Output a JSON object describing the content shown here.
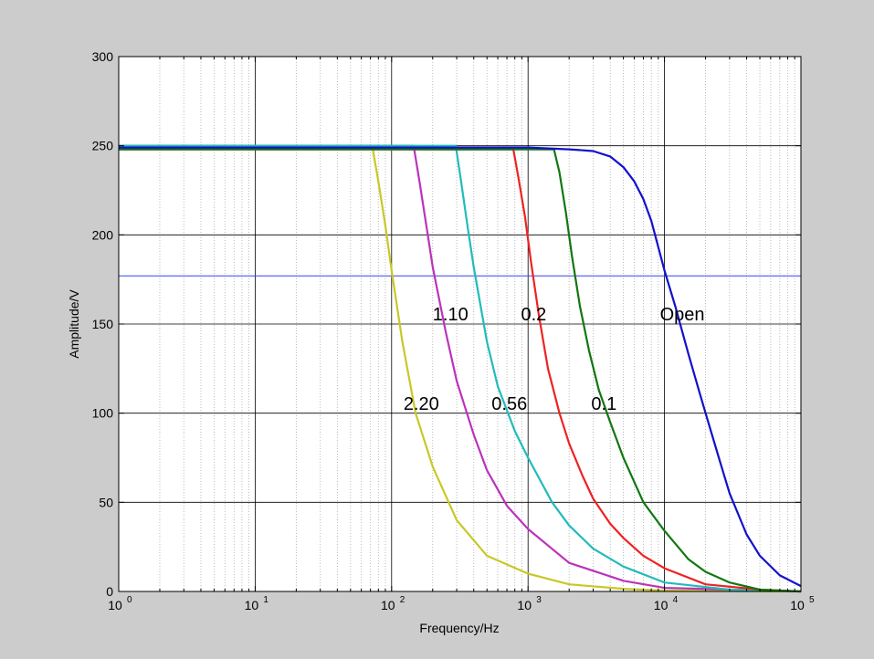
{
  "chart_data": {
    "type": "line",
    "xscale": "log",
    "xlabel": "Frequency/Hz",
    "ylabel": "Amplitude/V",
    "xlim": [
      1,
      100000
    ],
    "ylim": [
      0,
      300
    ],
    "grid": true,
    "minor_grid": true,
    "x_tick_labels": [
      {
        "base": "10",
        "exp": "0"
      },
      {
        "base": "10",
        "exp": "1"
      },
      {
        "base": "10",
        "exp": "2"
      },
      {
        "base": "10",
        "exp": "3"
      },
      {
        "base": "10",
        "exp": "4"
      },
      {
        "base": "10",
        "exp": "5"
      }
    ],
    "y_tick_labels": [
      "0",
      "50",
      "100",
      "150",
      "200",
      "250",
      "300"
    ],
    "reference_line": {
      "y": 177,
      "color": "#3344ee"
    },
    "series": [
      {
        "name": "2.20",
        "color": "#c8c828",
        "x": [
          1,
          10,
          50,
          72,
          80,
          90,
          100,
          120,
          150,
          200,
          300,
          500,
          1000,
          2000,
          5000,
          10000,
          100000
        ],
        "y": [
          250,
          250,
          250,
          250,
          230,
          205,
          180,
          140,
          100,
          70,
          40,
          20,
          10,
          4,
          1.5,
          0.5,
          0
        ]
      },
      {
        "name": "1.10",
        "color": "#bb33bb",
        "x": [
          1,
          10,
          100,
          145,
          160,
          180,
          200,
          250,
          300,
          400,
          500,
          700,
          1000,
          2000,
          5000,
          10000,
          100000
        ],
        "y": [
          250,
          250,
          250,
          250,
          230,
          205,
          182,
          145,
          118,
          88,
          68,
          48,
          35,
          16,
          6,
          2,
          0
        ]
      },
      {
        "name": "0.56",
        "color": "#22bbbb",
        "x": [
          1,
          10,
          100,
          295,
          320,
          360,
          400,
          500,
          600,
          800,
          1000,
          1500,
          2000,
          3000,
          5000,
          10000,
          30000,
          100000
        ],
        "y": [
          250,
          250,
          250,
          250,
          232,
          205,
          182,
          140,
          115,
          90,
          75,
          50,
          37,
          24,
          14,
          5,
          1,
          0
        ]
      },
      {
        "name": "0.2",
        "color": "#ee2222",
        "x": [
          1,
          10,
          100,
          780,
          850,
          950,
          1050,
          1200,
          1400,
          1700,
          2000,
          2500,
          3000,
          4000,
          5000,
          7000,
          10000,
          20000,
          50000,
          100000
        ],
        "y": [
          248,
          248,
          248,
          248,
          232,
          210,
          185,
          155,
          125,
          100,
          83,
          65,
          52,
          38,
          30,
          20,
          13,
          4,
          1,
          0
        ]
      },
      {
        "name": "0.1",
        "color": "#117711",
        "x": [
          1,
          10,
          100,
          1000,
          1550,
          1700,
          1900,
          2100,
          2400,
          2800,
          3300,
          4000,
          5000,
          7000,
          10000,
          15000,
          20000,
          30000,
          50000,
          100000
        ],
        "y": [
          248,
          248,
          248,
          248,
          248,
          235,
          212,
          188,
          160,
          135,
          113,
          95,
          75,
          50,
          34,
          18,
          11,
          5,
          1,
          0
        ]
      },
      {
        "name": "Open",
        "color": "#1111cc",
        "x": [
          1,
          10,
          100,
          1000,
          2000,
          3000,
          4000,
          5000,
          6000,
          7000,
          8000,
          10000,
          12000,
          15000,
          18000,
          20000,
          25000,
          30000,
          40000,
          50000,
          70000,
          100000
        ],
        "y": [
          249,
          249,
          249,
          249,
          248,
          247,
          244,
          238,
          230,
          220,
          208,
          180,
          160,
          133,
          112,
          100,
          75,
          55,
          32,
          20,
          9,
          3
        ]
      }
    ],
    "annotations": [
      {
        "text": "1.10",
        "x": 270,
        "y": 152
      },
      {
        "text": "0.2",
        "x": 1100,
        "y": 152
      },
      {
        "text": "Open",
        "x": 13500,
        "y": 152
      },
      {
        "text": "2.20",
        "x": 165,
        "y": 102
      },
      {
        "text": "0.56",
        "x": 730,
        "y": 102
      },
      {
        "text": "0.1",
        "x": 3600,
        "y": 102
      }
    ]
  }
}
